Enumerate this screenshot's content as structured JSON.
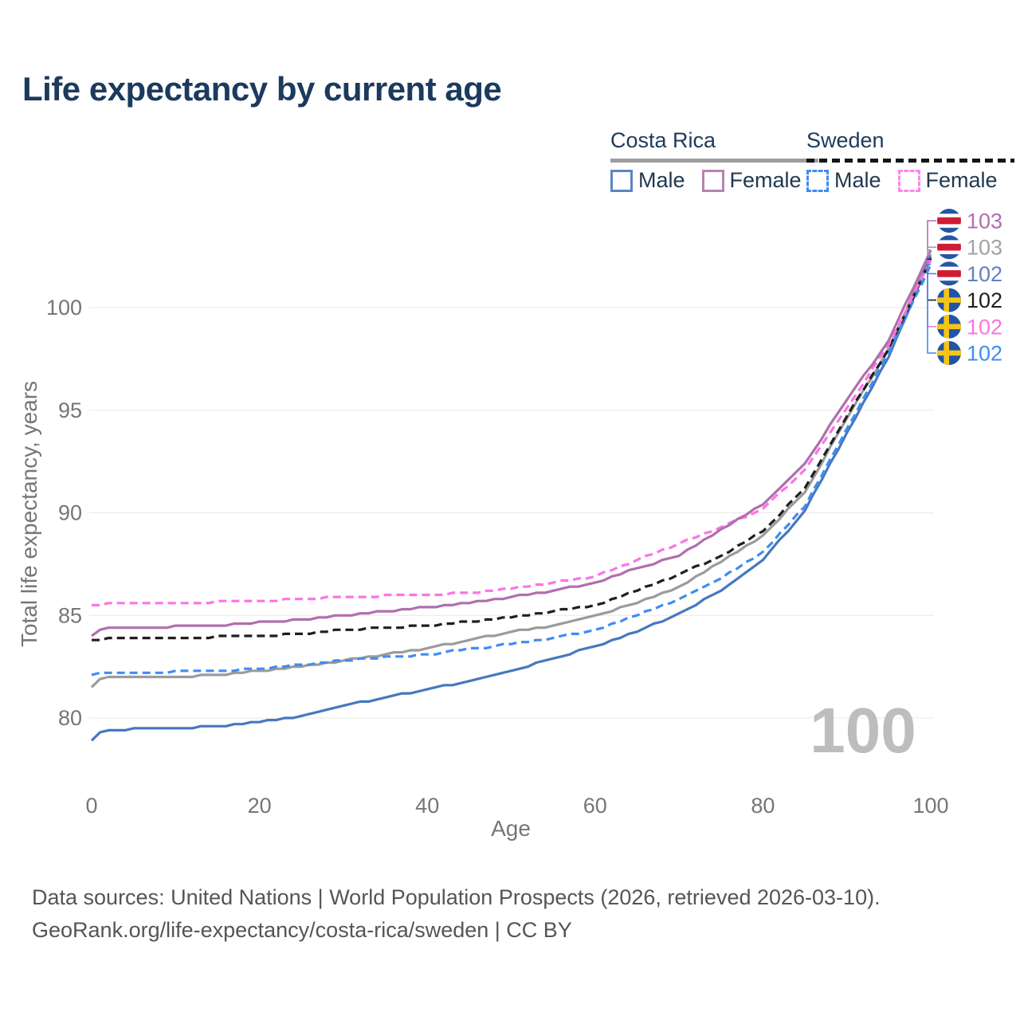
{
  "title": "Life expectancy by current age",
  "legend": {
    "groups": [
      {
        "country": "Costa Rica",
        "line_style": "solid",
        "line_color": "#9e9e9e",
        "items": [
          {
            "label": "Male",
            "color": "#5c84c4",
            "dashed": false
          },
          {
            "label": "Female",
            "color": "#b583b3",
            "dashed": false
          }
        ]
      },
      {
        "country": "Sweden",
        "line_style": "dashed",
        "line_color": "#151515",
        "items": [
          {
            "label": "Male",
            "color": "#3f8df2",
            "dashed": true
          },
          {
            "label": "Female",
            "color": "#fb86ec",
            "dashed": true
          }
        ]
      }
    ]
  },
  "watermark": "100",
  "footer": {
    "line1": "Data sources: United Nations | World Population Prospects (2026, retrieved 2026-03-10).",
    "line2": "GeoRank.org/life-expectancy/costa-rica/sweden | CC BY"
  },
  "chart_data": {
    "type": "line",
    "title": "Life expectancy by current age",
    "xlabel": "Age",
    "ylabel": "Total life expectancy, years",
    "xlim": [
      0,
      100
    ],
    "ylim": [
      78.5,
      103.5
    ],
    "x_ticks": [
      0,
      20,
      40,
      60,
      80,
      100
    ],
    "y_ticks": [
      80,
      85,
      90,
      95,
      100
    ],
    "grid": "horizontal",
    "legend_position": "top-right",
    "series": [
      {
        "id": "costa_rica_total",
        "name": "Costa Rica Total",
        "color": "#9b9b9b",
        "dashed": false,
        "points": [
          [
            0,
            81.5
          ],
          [
            1,
            81.9
          ],
          [
            2,
            82.0
          ],
          [
            10,
            82.0
          ],
          [
            15,
            82.1
          ],
          [
            20,
            82.3
          ],
          [
            25,
            82.5
          ],
          [
            30,
            82.8
          ],
          [
            35,
            83.1
          ],
          [
            40,
            83.4
          ],
          [
            45,
            83.8
          ],
          [
            50,
            84.2
          ],
          [
            55,
            84.5
          ],
          [
            60,
            85.0
          ],
          [
            65,
            85.6
          ],
          [
            70,
            86.4
          ],
          [
            75,
            87.6
          ],
          [
            80,
            88.9
          ],
          [
            85,
            91.0
          ],
          [
            90,
            94.6
          ],
          [
            95,
            98.0
          ],
          [
            100,
            102.6
          ]
        ]
      },
      {
        "id": "costa_rica_male",
        "name": "Costa Rica Male",
        "color": "#4678bf",
        "dashed": false,
        "points": [
          [
            0,
            78.9
          ],
          [
            1,
            79.3
          ],
          [
            2,
            79.4
          ],
          [
            5,
            79.45
          ],
          [
            10,
            79.5
          ],
          [
            15,
            79.6
          ],
          [
            20,
            79.8
          ],
          [
            25,
            80.1
          ],
          [
            30,
            80.6
          ],
          [
            35,
            81.0
          ],
          [
            40,
            81.4
          ],
          [
            45,
            81.8
          ],
          [
            50,
            82.3
          ],
          [
            55,
            82.9
          ],
          [
            60,
            83.5
          ],
          [
            65,
            84.2
          ],
          [
            70,
            85.1
          ],
          [
            75,
            86.2
          ],
          [
            80,
            87.7
          ],
          [
            85,
            90.1
          ],
          [
            90,
            93.9
          ],
          [
            95,
            97.6
          ],
          [
            100,
            102.45
          ]
        ]
      },
      {
        "id": "sweden_male",
        "name": "Sweden Male",
        "color": "#3f8df2",
        "dashed": true,
        "points": [
          [
            0,
            82.1
          ],
          [
            2,
            82.2
          ],
          [
            10,
            82.25
          ],
          [
            15,
            82.3
          ],
          [
            20,
            82.4
          ],
          [
            25,
            82.6
          ],
          [
            30,
            82.8
          ],
          [
            35,
            82.95
          ],
          [
            40,
            83.1
          ],
          [
            45,
            83.35
          ],
          [
            50,
            83.6
          ],
          [
            55,
            83.9
          ],
          [
            60,
            84.3
          ],
          [
            65,
            85.0
          ],
          [
            70,
            85.8
          ],
          [
            75,
            86.8
          ],
          [
            80,
            88.1
          ],
          [
            85,
            90.3
          ],
          [
            90,
            94.1
          ],
          [
            95,
            97.8
          ],
          [
            100,
            102.1
          ]
        ]
      },
      {
        "id": "sweden_total",
        "name": "Sweden Total",
        "color": "#1f1f1f",
        "dashed": true,
        "points": [
          [
            0,
            83.8
          ],
          [
            2,
            83.85
          ],
          [
            10,
            83.9
          ],
          [
            15,
            83.95
          ],
          [
            20,
            84.0
          ],
          [
            25,
            84.1
          ],
          [
            30,
            84.3
          ],
          [
            35,
            84.4
          ],
          [
            40,
            84.5
          ],
          [
            45,
            84.7
          ],
          [
            50,
            84.9
          ],
          [
            55,
            85.2
          ],
          [
            60,
            85.5
          ],
          [
            65,
            86.2
          ],
          [
            70,
            87.0
          ],
          [
            75,
            87.9
          ],
          [
            80,
            89.1
          ],
          [
            85,
            91.2
          ],
          [
            90,
            94.7
          ],
          [
            95,
            98.0
          ],
          [
            100,
            102.35
          ]
        ]
      },
      {
        "id": "sweden_female",
        "name": "Sweden Female",
        "color": "#fb74e4",
        "dashed": true,
        "points": [
          [
            0,
            85.5
          ],
          [
            2,
            85.55
          ],
          [
            10,
            85.6
          ],
          [
            15,
            85.65
          ],
          [
            20,
            85.7
          ],
          [
            25,
            85.8
          ],
          [
            30,
            85.9
          ],
          [
            35,
            85.95
          ],
          [
            40,
            86.0
          ],
          [
            45,
            86.1
          ],
          [
            50,
            86.3
          ],
          [
            55,
            86.6
          ],
          [
            60,
            86.9
          ],
          [
            65,
            87.7
          ],
          [
            70,
            88.5
          ],
          [
            75,
            89.3
          ],
          [
            80,
            90.2
          ],
          [
            85,
            92.1
          ],
          [
            90,
            95.1
          ],
          [
            95,
            98.2
          ],
          [
            100,
            102.3
          ]
        ]
      },
      {
        "id": "costa_rica_female",
        "name": "Costa Rica Female",
        "color": "#b06fae",
        "dashed": false,
        "points": [
          [
            0,
            84.0
          ],
          [
            1,
            84.3
          ],
          [
            2,
            84.4
          ],
          [
            10,
            84.45
          ],
          [
            15,
            84.5
          ],
          [
            20,
            84.65
          ],
          [
            25,
            84.8
          ],
          [
            30,
            85.0
          ],
          [
            35,
            85.2
          ],
          [
            40,
            85.4
          ],
          [
            45,
            85.6
          ],
          [
            50,
            85.9
          ],
          [
            55,
            86.2
          ],
          [
            60,
            86.6
          ],
          [
            65,
            87.3
          ],
          [
            70,
            87.9
          ],
          [
            75,
            89.2
          ],
          [
            80,
            90.4
          ],
          [
            85,
            92.4
          ],
          [
            90,
            95.5
          ],
          [
            95,
            98.4
          ],
          [
            100,
            102.8
          ]
        ]
      }
    ],
    "end_labels": [
      {
        "series": "costa_rica_female",
        "flag": "costa-rica",
        "value": "103",
        "color": "#b06fae"
      },
      {
        "series": "costa_rica_total",
        "flag": "costa-rica",
        "value": "103",
        "color": "#a3a3a3"
      },
      {
        "series": "costa_rica_male",
        "flag": "costa-rica",
        "value": "102",
        "color": "#6181c5"
      },
      {
        "series": "sweden_total",
        "flag": "sweden",
        "value": "102",
        "color": "#1f1f1f"
      },
      {
        "series": "sweden_female",
        "flag": "sweden",
        "value": "102",
        "color": "#fb74e4"
      },
      {
        "series": "sweden_male",
        "flag": "sweden",
        "value": "102",
        "color": "#3f8df2"
      }
    ],
    "flag_colors": {
      "costa_rica_blue": "#2456a4",
      "costa_rica_red": "#d01c33",
      "sweden_blue": "#2154a6",
      "sweden_yellow": "#f5c518"
    }
  }
}
